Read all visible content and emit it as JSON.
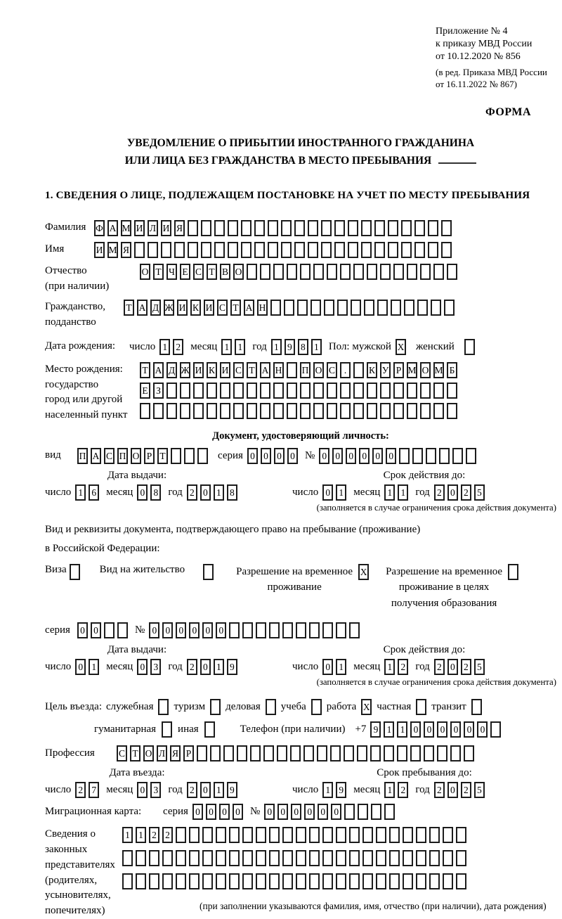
{
  "lbl": {
    "num": "число",
    "month": "месяц",
    "year": "год",
    "seria": "серия",
    "no": "№"
  },
  "header": {
    "appendix": [
      "Приложение № 4",
      "к приказу МВД России",
      "от 10.12.2020 № 856"
    ],
    "edition": [
      "(в ред. Приказа МВД России",
      "от 16.11.2022 № 867)"
    ],
    "form_label": "ФОРМА"
  },
  "title": {
    "line1": "УВЕДОМЛЕНИЕ О ПРИБЫТИИ ИНОСТРАННОГО ГРАЖДАНИНА",
    "line2": "ИЛИ ЛИЦА БЕЗ ГРАЖДАНСТВА В МЕСТО ПРЕБЫВАНИЯ"
  },
  "section1_heading": "1. СВЕДЕНИЯ О ЛИЦЕ, ПОДЛЕЖАЩЕМ ПОСТАНОВКЕ НА УЧЕТ ПО МЕСТУ ПРЕБЫВАНИЯ",
  "surname": {
    "label": "Фамилия",
    "cells": {
      "s": "ФАМИЛИЯ",
      "n": 27
    }
  },
  "firstname": {
    "label": "Имя",
    "cells": {
      "s": "ИМЯ",
      "n": 27
    }
  },
  "patronymic": {
    "label1": "Отчество",
    "label2": "(при наличии)",
    "cells": {
      "s": "ОТЧЕСТВО",
      "n": 24
    }
  },
  "citizenship": {
    "label1": "Гражданство,",
    "label2": "подданство",
    "cells": {
      "s": "ТАДЖИКИСТАН",
      "n": 25
    }
  },
  "birthdate": {
    "label": "Дата рождения:",
    "d": {
      "s": "12",
      "n": 2
    },
    "m": {
      "s": "11",
      "n": 2
    },
    "y": {
      "s": "1981",
      "n": 4
    },
    "gender_label": "Пол:",
    "male_label": "мужской",
    "male": "X",
    "female_label": "женский",
    "female": ""
  },
  "birthplace": {
    "label1": "Место рождения:",
    "label2": "государство",
    "label3": "город или другой",
    "label4": "населенный пункт",
    "row1": {
      "s": "ТАДЖИКИСТАН_ПОС._КУРМОМБ",
      "n": 24
    },
    "row2": {
      "s": "ЕЗ",
      "n": 24
    },
    "row3": {
      "s": "",
      "n": 24
    }
  },
  "iddoc": {
    "heading": "Документ, удостоверяющий личность:",
    "kind_label": "вид",
    "kind": {
      "s": "ПАСПОРТ",
      "n": 10
    },
    "seria": {
      "s": "0000",
      "n": 4
    },
    "num": {
      "s": "000000",
      "n": 12
    },
    "issue": {
      "title": "Дата выдачи:",
      "d": {
        "s": "16",
        "n": 2
      },
      "m": {
        "s": "08",
        "n": 2
      },
      "y": {
        "s": "2018",
        "n": 4
      }
    },
    "expiry": {
      "title": "Срок действия до:",
      "d": {
        "s": "01",
        "n": 2
      },
      "m": {
        "s": "11",
        "n": 2
      },
      "y": {
        "s": "2025",
        "n": 4
      }
    },
    "expiry_note": "(заполняется в случае ограничения срока действия документа)"
  },
  "permit": {
    "intro1": "Вид и реквизиты документа, подтверждающего право на пребывание (проживание)",
    "intro2": "в Российской Федерации:",
    "visa": {
      "label": "Виза",
      "v": ""
    },
    "residence": {
      "label": "Вид на жительство",
      "v": ""
    },
    "rvp": {
      "l1": "Разрешение на временное",
      "l2": "проживание",
      "v": "X"
    },
    "rvp_edu": {
      "l1": "Разрешение на временное",
      "l2": "проживание в целях",
      "l3": "получения образования",
      "v": ""
    },
    "seria": {
      "s": "00",
      "n": 4
    },
    "num": {
      "s": "000000",
      "n": 16
    },
    "issue": {
      "title": "Дата выдачи:",
      "d": {
        "s": "01",
        "n": 2
      },
      "m": {
        "s": "03",
        "n": 2
      },
      "y": {
        "s": "2019",
        "n": 4
      }
    },
    "expiry": {
      "title": "Срок действия до:",
      "d": {
        "s": "01",
        "n": 2
      },
      "m": {
        "s": "12",
        "n": 2
      },
      "y": {
        "s": "2025",
        "n": 4
      }
    },
    "expiry_note": "(заполняется в случае ограничения срока действия документа)"
  },
  "purpose": {
    "label": "Цель въезда:",
    "official": {
      "label": "служебная",
      "v": ""
    },
    "tourism": {
      "label": "туризм",
      "v": ""
    },
    "business": {
      "label": "деловая",
      "v": ""
    },
    "study": {
      "label": "учеба",
      "v": ""
    },
    "work": {
      "label": "работа",
      "v": "X"
    },
    "private": {
      "label": "частная",
      "v": ""
    },
    "transit": {
      "label": "транзит",
      "v": ""
    },
    "humanitarian": {
      "label": "гуманитарная",
      "v": ""
    },
    "other": {
      "label": "иная",
      "v": ""
    }
  },
  "phone": {
    "label": "Телефон (при наличии)",
    "prefix": "+7",
    "cells": {
      "s": "911000000",
      "n": 10
    }
  },
  "profession": {
    "label": "Профессия",
    "cells": {
      "s": "СТОЛЯР",
      "n": 27
    }
  },
  "entry": {
    "issue": {
      "title": "Дата въезда:",
      "d": {
        "s": "27",
        "n": 2
      },
      "m": {
        "s": "03",
        "n": 2
      },
      "y": {
        "s": "2019",
        "n": 4
      }
    },
    "stay": {
      "title": "Срок пребывания до:",
      "d": {
        "s": "19",
        "n": 2
      },
      "m": {
        "s": "12",
        "n": 2
      },
      "y": {
        "s": "2025",
        "n": 4
      }
    }
  },
  "migcard": {
    "label": "Миграционная карта:",
    "seria": {
      "s": "0000",
      "n": 4
    },
    "num": {
      "s": "000000",
      "n": 10
    }
  },
  "representatives": {
    "label1": "Сведения о",
    "label2": "законных",
    "label3": "представителях",
    "label4": "(родителях,",
    "label5": "усыновителях,",
    "label6": "попечителях)",
    "row1": {
      "s": "1122",
      "n": 26
    },
    "row2": {
      "s": "",
      "n": 26
    },
    "row3": {
      "s": "",
      "n": 26
    },
    "note": "(при заполнении указываются фамилия, имя, отчество (при наличии), дата рождения)"
  }
}
